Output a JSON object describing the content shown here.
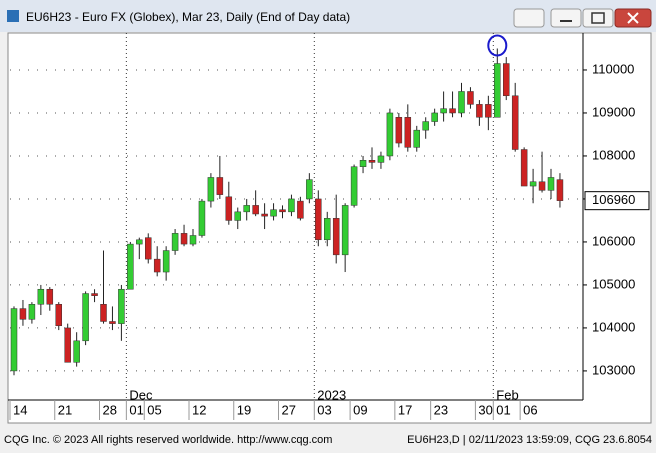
{
  "window": {
    "title": "EU6H23 - Euro FX (Globex), Mar 23, Daily (End of Day data)",
    "footer_left": "CQG Inc. © 2023 All rights reserved worldwide. http://www.cqg.com",
    "footer_right": "EU6H23,D | 02/11/2023 13:59:09, CQG 23.6.8054"
  },
  "chart_data": {
    "type": "candlestick",
    "categories": [
      "14",
      null,
      null,
      null,
      null,
      "21",
      null,
      null,
      null,
      null,
      "28",
      null,
      null,
      "01",
      null,
      "05",
      null,
      null,
      null,
      null,
      "12",
      null,
      null,
      null,
      null,
      "19",
      null,
      null,
      null,
      null,
      "27",
      null,
      null,
      null,
      "03",
      null,
      null,
      null,
      "09",
      null,
      null,
      null,
      null,
      "17",
      null,
      null,
      null,
      "23",
      null,
      null,
      null,
      null,
      "30",
      null,
      "01",
      null,
      null,
      "06",
      null,
      null,
      null,
      null
    ],
    "period_labels": [
      null,
      null,
      null,
      null,
      null,
      null,
      null,
      null,
      null,
      null,
      null,
      null,
      null,
      "Dec",
      null,
      null,
      null,
      null,
      null,
      null,
      null,
      null,
      null,
      null,
      null,
      null,
      null,
      null,
      null,
      null,
      null,
      null,
      null,
      null,
      "2023",
      null,
      null,
      null,
      null,
      null,
      null,
      null,
      null,
      null,
      null,
      null,
      null,
      null,
      null,
      null,
      null,
      null,
      null,
      null,
      "Feb",
      null,
      null,
      null,
      null,
      null,
      null,
      null
    ],
    "open": [
      103000,
      104450,
      104200,
      104550,
      104900,
      104550,
      104000,
      103200,
      103700,
      104800,
      104550,
      104150,
      104100,
      104900,
      105950,
      106100,
      105600,
      105300,
      105800,
      106200,
      105950,
      106150,
      106950,
      107500,
      107050,
      106500,
      106700,
      106850,
      106650,
      106600,
      106750,
      106700,
      106950,
      107000,
      107000,
      106050,
      106550,
      105700,
      106850,
      107750,
      107900,
      107850,
      108000,
      108900,
      108900,
      108200,
      108600,
      108800,
      109000,
      109100,
      109000,
      109500,
      109200,
      109200,
      108900,
      110150,
      109400,
      108150,
      107300,
      107400,
      107200,
      107450
    ],
    "high": [
      104500,
      104650,
      104600,
      105000,
      104950,
      104600,
      104100,
      103900,
      104850,
      104900,
      105800,
      104500,
      105000,
      106000,
      106100,
      106200,
      105900,
      105900,
      106300,
      106400,
      106300,
      107000,
      107600,
      108000,
      107400,
      106800,
      107000,
      107200,
      106900,
      106900,
      106850,
      107100,
      107050,
      107600,
      107200,
      106700,
      107100,
      106900,
      107800,
      108000,
      108200,
      108100,
      109100,
      109000,
      109200,
      108700,
      108900,
      109100,
      109500,
      109500,
      109700,
      109600,
      109300,
      109400,
      110500,
      110300,
      109700,
      108200,
      107700,
      108100,
      107700,
      107600
    ],
    "low": [
      102900,
      104050,
      104100,
      104300,
      104400,
      103950,
      103200,
      103100,
      103600,
      104600,
      104100,
      103950,
      103700,
      104900,
      105600,
      105500,
      105200,
      105100,
      105700,
      105900,
      105900,
      106100,
      106800,
      107000,
      106400,
      106300,
      106500,
      106600,
      106300,
      106500,
      106550,
      106600,
      106500,
      106900,
      105900,
      105900,
      105500,
      105300,
      106800,
      107600,
      107700,
      107700,
      107900,
      108200,
      108100,
      108100,
      108400,
      108700,
      108800,
      108900,
      108900,
      109100,
      108700,
      108600,
      108900,
      109300,
      108100,
      107300,
      106900,
      107150,
      107000,
      106800
    ],
    "close": [
      104450,
      104200,
      104550,
      104900,
      104550,
      104050,
      103200,
      103700,
      104800,
      104750,
      104150,
      104100,
      104900,
      105950,
      106050,
      105600,
      105300,
      105800,
      106200,
      105950,
      106150,
      106950,
      107500,
      107100,
      106500,
      106700,
      106850,
      106650,
      106600,
      106750,
      106700,
      107000,
      106550,
      107450,
      106050,
      106550,
      105700,
      106850,
      107750,
      107900,
      107850,
      108000,
      109000,
      108300,
      108200,
      108600,
      108800,
      109000,
      109100,
      109000,
      109500,
      109200,
      108900,
      108900,
      110150,
      109400,
      108150,
      107300,
      107400,
      107200,
      107500,
      106960
    ],
    "up_color": "#33cc33",
    "down_color": "#cc2222",
    "ylim": [
      102370,
      110860
    ],
    "yticks": [
      103000,
      104000,
      105000,
      106000,
      107000,
      108000,
      109000,
      110000
    ],
    "grid": true
  }
}
